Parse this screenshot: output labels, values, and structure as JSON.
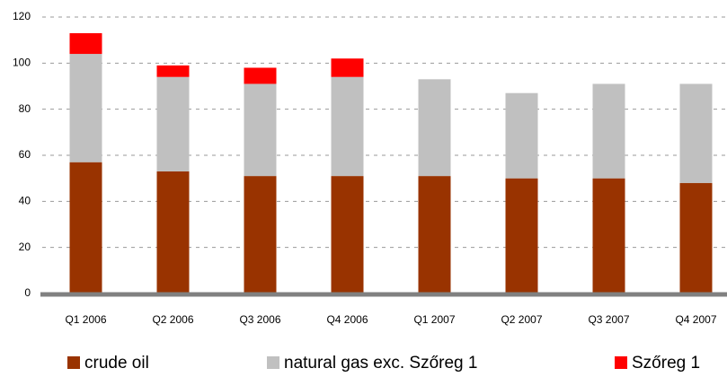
{
  "chart_data": {
    "type": "stacked_bar",
    "categories": [
      "Q1 2006",
      "Q2 2006",
      "Q3 2006",
      "Q4 2006",
      "Q1 2007",
      "Q2 2007",
      "Q3 2007",
      "Q4 2007"
    ],
    "series": [
      {
        "name": "crude oil",
        "color": "#993300",
        "values": [
          57,
          53,
          51,
          51,
          51,
          50,
          50,
          48
        ]
      },
      {
        "name": "natural gas exc. Szőreg 1",
        "color": "#c0c0c0",
        "values": [
          47,
          41,
          40,
          43,
          42,
          37,
          41,
          43
        ]
      },
      {
        "name": "Szőreg 1",
        "color": "#ff0000",
        "values": [
          9,
          5,
          7,
          8,
          0,
          0,
          0,
          0
        ]
      }
    ],
    "ylim": [
      0,
      120
    ],
    "yticks": [
      0,
      20,
      40,
      60,
      80,
      100,
      120
    ],
    "grid": true
  }
}
